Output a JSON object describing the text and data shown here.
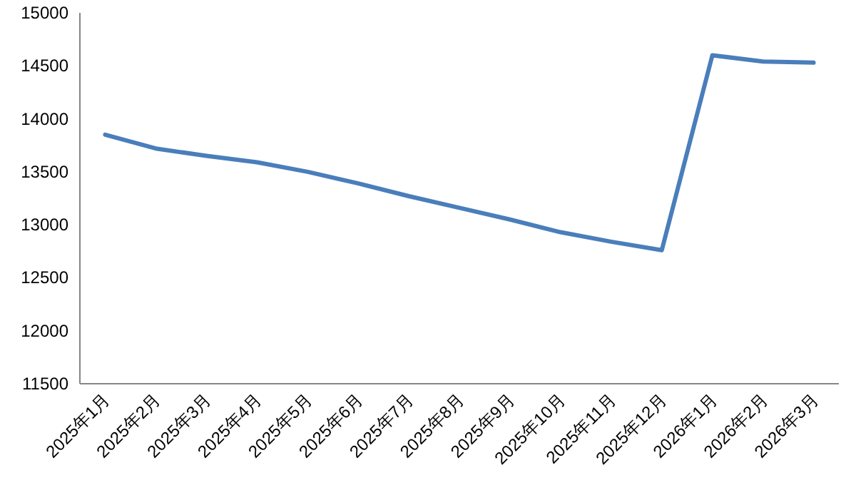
{
  "chart_data": {
    "type": "line",
    "categories": [
      "2025年1月",
      "2025年2月",
      "2025年3月",
      "2025年4月",
      "2025年5月",
      "2025年6月",
      "2025年7月",
      "2025年8月",
      "2025年9月",
      "2025年10月",
      "2025年11月",
      "2025年12月",
      "2026年1月",
      "2026年2月",
      "2026年3月"
    ],
    "values": [
      13850,
      13720,
      13650,
      13590,
      13500,
      13390,
      13270,
      13160,
      13050,
      12930,
      12840,
      12760,
      14600,
      14540,
      14530
    ],
    "color": "#4a7ebb",
    "ylim": [
      11500,
      15000
    ],
    "yticks": [
      11500,
      12000,
      12500,
      13000,
      13500,
      14000,
      14500,
      15000
    ]
  }
}
